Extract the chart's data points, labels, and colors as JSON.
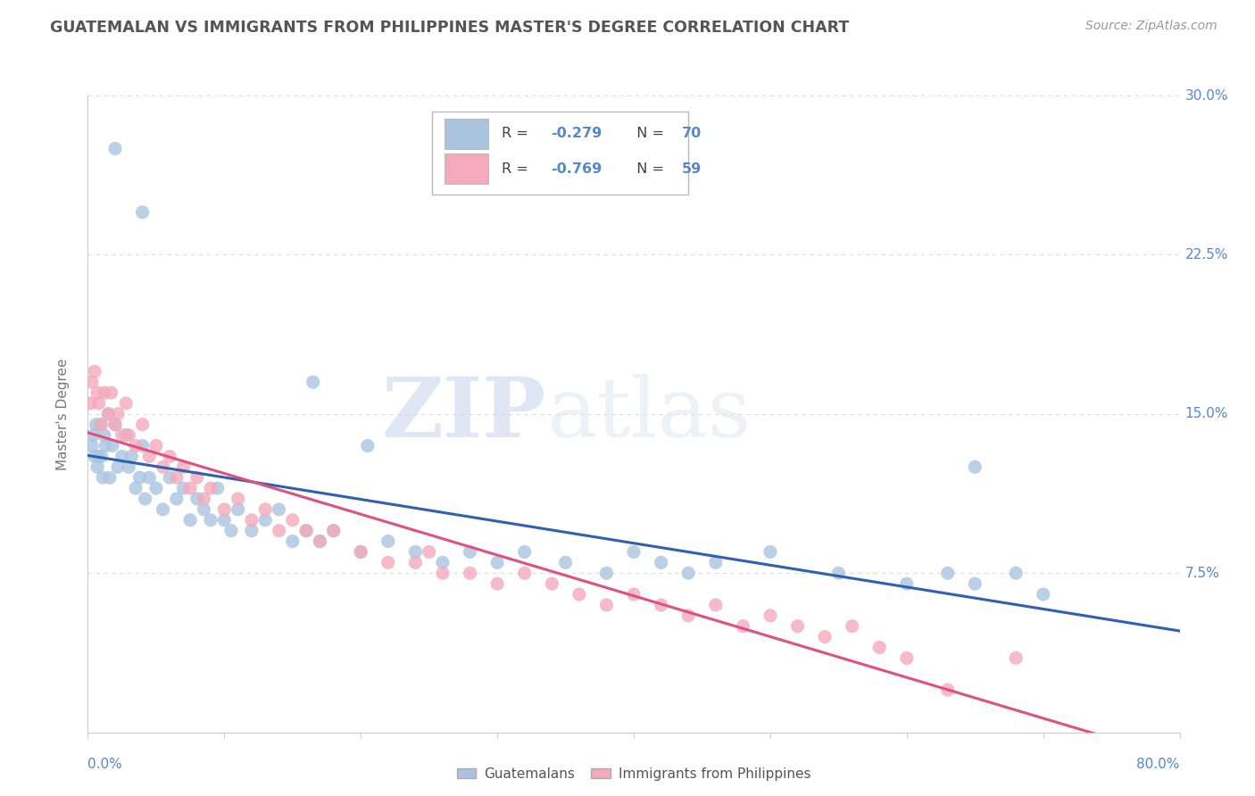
{
  "title": "GUATEMALAN VS IMMIGRANTS FROM PHILIPPINES MASTER'S DEGREE CORRELATION CHART",
  "source": "Source: ZipAtlas.com",
  "ylabel": "Master's Degree",
  "ytick_values": [
    0,
    7.5,
    15.0,
    22.5,
    30.0
  ],
  "xmin": 0.0,
  "xmax": 80.0,
  "ymin": 0.0,
  "ymax": 30.0,
  "blue_R": -0.279,
  "blue_N": 70,
  "pink_R": -0.769,
  "pink_N": 59,
  "blue_color": "#aac4e0",
  "pink_color": "#f4aabb",
  "blue_line_color": "#3060b0",
  "pink_line_color": "#e05080",
  "legend_label_blue": "Guatemalans",
  "legend_label_pink": "Immigrants from Philippines",
  "watermark_zip": "ZIP",
  "watermark_atlas": "atlas",
  "background_color": "#ffffff",
  "grid_color": "#dddddd",
  "title_color": "#555555",
  "axis_label_color": "#5588cc",
  "blue_scatter_x": [
    0.3,
    0.4,
    0.5,
    0.6,
    0.7,
    0.8,
    0.9,
    1.0,
    1.1,
    1.2,
    1.3,
    1.5,
    1.6,
    1.8,
    2.0,
    2.2,
    2.5,
    2.8,
    3.0,
    3.2,
    3.5,
    3.8,
    4.0,
    4.2,
    4.5,
    5.0,
    5.5,
    6.0,
    6.5,
    7.0,
    7.5,
    8.0,
    8.5,
    9.0,
    9.5,
    10.0,
    10.5,
    11.0,
    12.0,
    13.0,
    14.0,
    15.0,
    16.0,
    17.0,
    18.0,
    20.0,
    22.0,
    24.0,
    26.0,
    28.0,
    30.0,
    32.0,
    35.0,
    38.0,
    40.0,
    42.0,
    44.0,
    46.0,
    50.0,
    55.0,
    60.0,
    63.0,
    65.0,
    68.0,
    70.0,
    2.0,
    4.0,
    16.5,
    20.5,
    65.0
  ],
  "blue_scatter_y": [
    13.5,
    14.0,
    13.0,
    14.5,
    12.5,
    13.0,
    14.5,
    13.0,
    12.0,
    14.0,
    13.5,
    15.0,
    12.0,
    13.5,
    14.5,
    12.5,
    13.0,
    14.0,
    12.5,
    13.0,
    11.5,
    12.0,
    13.5,
    11.0,
    12.0,
    11.5,
    10.5,
    12.0,
    11.0,
    11.5,
    10.0,
    11.0,
    10.5,
    10.0,
    11.5,
    10.0,
    9.5,
    10.5,
    9.5,
    10.0,
    10.5,
    9.0,
    9.5,
    9.0,
    9.5,
    8.5,
    9.0,
    8.5,
    8.0,
    8.5,
    8.0,
    8.5,
    8.0,
    7.5,
    8.5,
    8.0,
    7.5,
    8.0,
    8.5,
    7.5,
    7.0,
    7.5,
    7.0,
    7.5,
    6.5,
    27.5,
    24.5,
    16.5,
    13.5,
    12.5
  ],
  "pink_scatter_x": [
    0.2,
    0.3,
    0.5,
    0.7,
    0.8,
    1.0,
    1.2,
    1.5,
    1.7,
    2.0,
    2.2,
    2.5,
    2.8,
    3.0,
    3.5,
    4.0,
    4.5,
    5.0,
    5.5,
    6.0,
    6.5,
    7.0,
    7.5,
    8.0,
    8.5,
    9.0,
    10.0,
    11.0,
    12.0,
    13.0,
    14.0,
    15.0,
    16.0,
    17.0,
    18.0,
    20.0,
    22.0,
    24.0,
    25.0,
    26.0,
    28.0,
    30.0,
    32.0,
    34.0,
    36.0,
    38.0,
    40.0,
    42.0,
    44.0,
    46.0,
    48.0,
    50.0,
    52.0,
    54.0,
    56.0,
    58.0,
    60.0,
    63.0,
    68.0
  ],
  "pink_scatter_y": [
    15.5,
    16.5,
    17.0,
    16.0,
    15.5,
    14.5,
    16.0,
    15.0,
    16.0,
    14.5,
    15.0,
    14.0,
    15.5,
    14.0,
    13.5,
    14.5,
    13.0,
    13.5,
    12.5,
    13.0,
    12.0,
    12.5,
    11.5,
    12.0,
    11.0,
    11.5,
    10.5,
    11.0,
    10.0,
    10.5,
    9.5,
    10.0,
    9.5,
    9.0,
    9.5,
    8.5,
    8.0,
    8.0,
    8.5,
    7.5,
    7.5,
    7.0,
    7.5,
    7.0,
    6.5,
    6.0,
    6.5,
    6.0,
    5.5,
    6.0,
    5.0,
    5.5,
    5.0,
    4.5,
    5.0,
    4.0,
    3.5,
    2.0,
    3.5
  ]
}
